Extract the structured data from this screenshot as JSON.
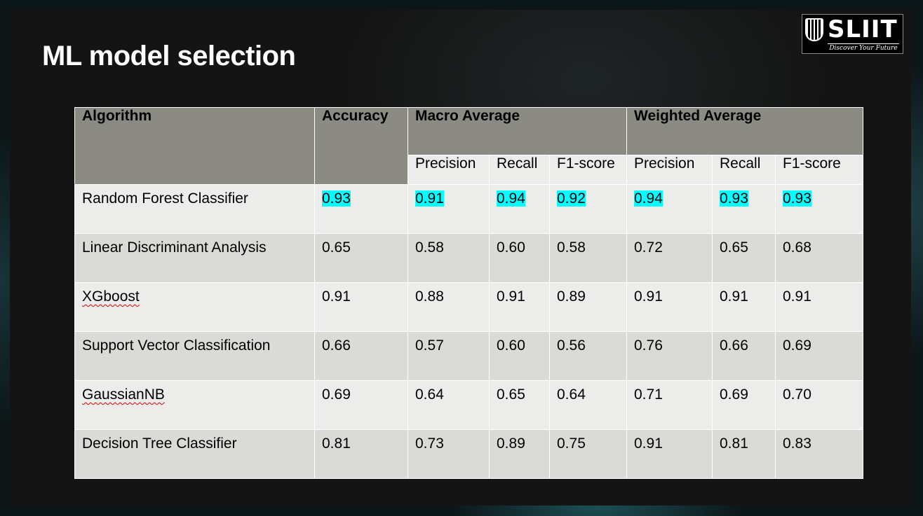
{
  "slide": {
    "title": "ML model selection"
  },
  "logo": {
    "name": "SLIIT",
    "tagline": "Discover Your Future"
  },
  "table": {
    "headers": {
      "algorithm": "Algorithm",
      "accuracy": "Accuracy",
      "macro_group": "Macro Average",
      "weighted_group": "Weighted Average",
      "macro_precision": "Precision",
      "macro_recall": "Recall",
      "macro_f1": "F1-score",
      "weighted_precision": "Precision",
      "weighted_recall": "Recall",
      "weighted_f1": "F1-score"
    },
    "rows": [
      [
        "Random Forest Classifier",
        "0.93",
        "0.91",
        "0.94",
        "0.92",
        "0.94",
        "0.93",
        "0.93"
      ],
      [
        "Linear Discriminant Analysis",
        "0.65",
        "0.58",
        "0.60",
        "0.58",
        "0.72",
        "0.65",
        "0.68"
      ],
      [
        "XGboost",
        "0.91",
        "0.88",
        "0.91",
        "0.89",
        "0.91",
        "0.91",
        "0.91"
      ],
      [
        "Support Vector Classification",
        "0.66",
        "0.57",
        "0.60",
        "0.56",
        "0.76",
        "0.66",
        "0.69"
      ],
      [
        "GaussianNB",
        "0.69",
        "0.64",
        "0.65",
        "0.64",
        "0.71",
        "0.69",
        "0.70"
      ],
      [
        "Decision Tree Classifier",
        "0.81",
        "0.73",
        "0.89",
        "0.75",
        "0.91",
        "0.81",
        "0.83"
      ]
    ],
    "highlight_color": "#00ffff"
  }
}
